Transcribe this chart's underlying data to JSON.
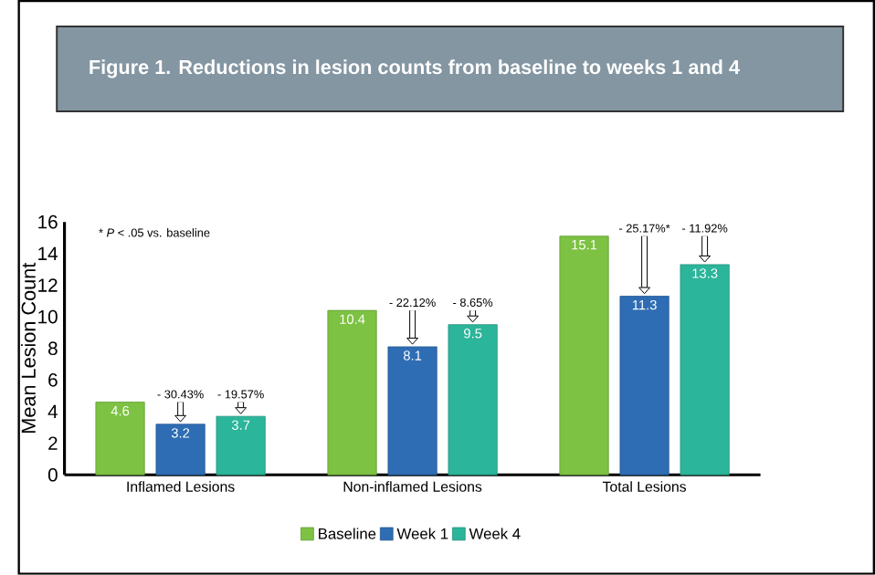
{
  "chart_data": {
    "type": "bar",
    "title": "Figure 1. Reductions in lesion counts from baseline to weeks 1 and 4",
    "ylabel": "Mean Lesion Count",
    "categories": [
      "Inflamed Lesions",
      "Non-inflamed Lesions",
      "Total Lesions"
    ],
    "series": [
      {
        "name": "Baseline",
        "color": "#7dc242",
        "values": [
          4.6,
          10.4,
          15.1
        ]
      },
      {
        "name": "Week 1",
        "color": "#2e6db4",
        "values": [
          3.2,
          8.1,
          11.3
        ]
      },
      {
        "name": "Week 4",
        "color": "#2bb59a",
        "values": [
          3.7,
          9.5,
          13.3
        ]
      }
    ],
    "ylim": [
      0,
      16
    ],
    "yticks": [
      0,
      2,
      4,
      6,
      8,
      10,
      12,
      14,
      16
    ],
    "data_labels": true,
    "legend": "bottom",
    "grid": false,
    "annotations": [
      "* *P* < .05 vs. baseline",
      {
        "text": "- 30.43%",
        "x": "Inflamed Lesions",
        "y": 3.2
      },
      "- 19.57%",
      {
        "text": "- 22.12%",
        "x": "Non-inflamed Lesions",
        "y": 8.1
      },
      "- 8.65%",
      {
        "text": "- 25.17%*",
        "x": "Total Lesions",
        "y": 11.3
      },
      "- 11.92%"
    ]
  }
}
